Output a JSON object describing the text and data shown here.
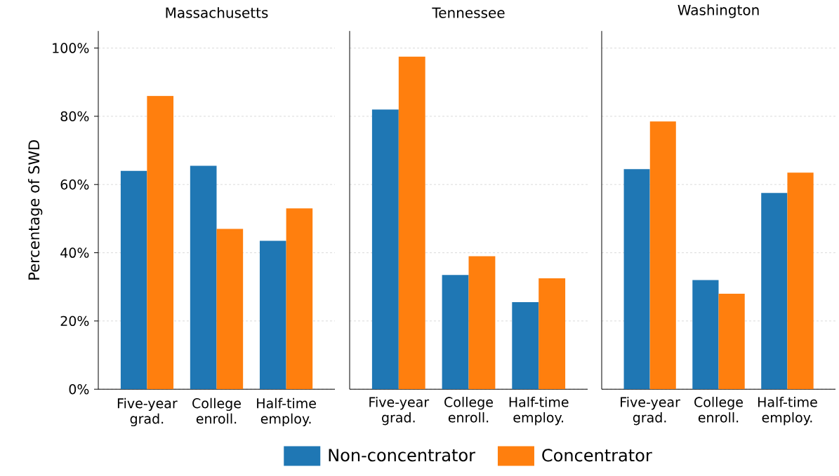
{
  "chart_data": [
    {
      "type": "bar",
      "title": "Massachusetts",
      "ylabel": "Percentage of SWD",
      "categories": [
        "Five-year grad.",
        "College enroll.",
        "Half-time employ."
      ],
      "series": [
        {
          "color": "#1f77b4",
          "values": [
            64,
            65.5,
            43.5
          ]
        },
        {
          "color": "#ff7f0e",
          "values": [
            86,
            47,
            53
          ]
        }
      ],
      "ylim": [
        0,
        105
      ],
      "yticks": [
        {
          "value": 0,
          "label": "0%"
        },
        {
          "value": 20,
          "label": "20%"
        },
        {
          "value": 40,
          "label": "40%"
        },
        {
          "value": 60,
          "label": "60%"
        },
        {
          "value": 80,
          "label": "80%"
        },
        {
          "value": 100,
          "label": "100%"
        }
      ],
      "grid": "y",
      "legend": false
    },
    {
      "type": "bar",
      "title": "Tennessee",
      "categories": [
        "Five-year grad.",
        "College enroll.",
        "Half-time employ."
      ],
      "series": [
        {
          "name": "Non-concentrator",
          "color": "#1f77b4",
          "values": [
            82,
            33.5,
            25.5
          ]
        },
        {
          "name": "Concentrator",
          "color": "#ff7f0e",
          "values": [
            97.5,
            39,
            32.5
          ]
        }
      ],
      "ylim": [
        0,
        105
      ],
      "yticks": [
        0,
        20,
        40,
        60,
        80,
        100
      ],
      "grid": "y",
      "legend": "bottom",
      "tick_labels": "x"
    },
    {
      "type": "bar",
      "title": "Washington",
      "categories": [
        "Five-year grad.",
        "College enroll.",
        "Half-time employ."
      ],
      "series": [
        {
          "color": "#1f77b4",
          "values": [
            64.5,
            32,
            57.5
          ]
        },
        {
          "color": "#ff7f0e",
          "values": [
            78.5,
            28,
            63.5
          ]
        }
      ],
      "ylim": [
        0,
        105
      ],
      "yticks": [
        0,
        20,
        40,
        60,
        80,
        100
      ],
      "grid": "y",
      "legend": false,
      "tick_labels": "x"
    }
  ]
}
